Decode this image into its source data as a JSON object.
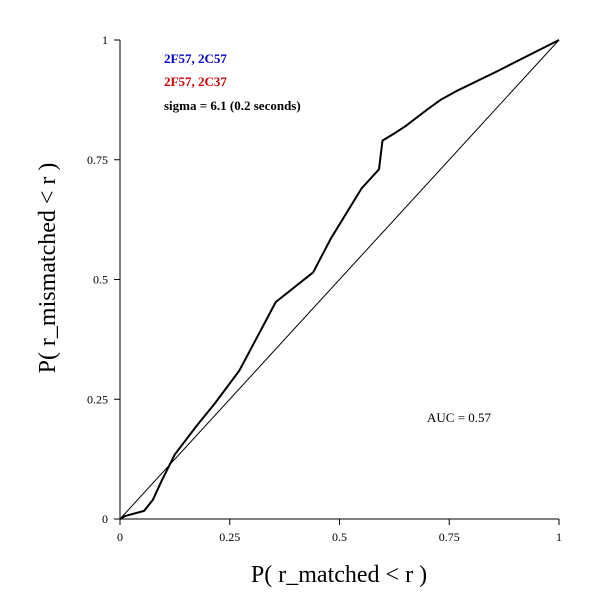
{
  "chart_data": {
    "type": "line",
    "xlabel": "P( r_matched < r )",
    "ylabel": "P( r_mismatched < r )",
    "xlim": [
      0,
      1
    ],
    "ylim": [
      0,
      1
    ],
    "xticks": [
      "0",
      "0.25",
      "0.5",
      "0.75",
      "1"
    ],
    "yticks": [
      "0",
      "0.25",
      "0.5",
      "0.75",
      "1"
    ],
    "grid": false,
    "legend_position": "top-left",
    "legend": [
      {
        "label": "2F57, 2C57",
        "color": "#0000cc"
      },
      {
        "label": "2F57, 2C37",
        "color": "#cc0000"
      },
      {
        "label": "sigma = 6.1 (0.2 seconds)",
        "color": "#000000"
      }
    ],
    "annotation": "AUC = 0.57",
    "series": [
      {
        "color": "#000000",
        "x": [
          0,
          0.011,
          0.055,
          0.075,
          0.095,
          0.125,
          0.175,
          0.215,
          0.272,
          0.355,
          0.44,
          0.48,
          0.55,
          0.59,
          0.598,
          0.625,
          0.65,
          0.7,
          0.73,
          0.77,
          0.86,
          1.0
        ],
        "y": [
          0,
          0.006,
          0.017,
          0.04,
          0.08,
          0.135,
          0.195,
          0.24,
          0.31,
          0.453,
          0.515,
          0.585,
          0.69,
          0.73,
          0.79,
          0.805,
          0.82,
          0.855,
          0.875,
          0.895,
          0.935,
          1.0
        ]
      },
      {
        "name": "diagonal",
        "color": "#000000",
        "x": [
          0,
          1
        ],
        "y": [
          0,
          1
        ]
      }
    ]
  }
}
